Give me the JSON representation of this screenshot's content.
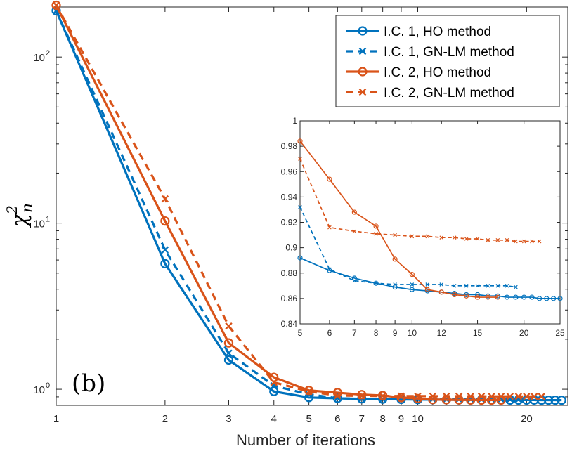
{
  "chart_data": {
    "type": "line",
    "xlabel": "Number of iterations",
    "ylabel": "χ",
    "ylabel_superscript": "2",
    "ylabel_subscript": "n",
    "panel_label": "(b)",
    "xscale": "log",
    "yscale": "log",
    "xlim": [
      1,
      26
    ],
    "ylim": [
      0.8,
      200
    ],
    "xticks": [
      1,
      2,
      3,
      4,
      5,
      6,
      7,
      8,
      9,
      10,
      20
    ],
    "xtick_labels": [
      "1",
      "2",
      "3",
      "4",
      "5",
      "6",
      "7",
      "8",
      "9",
      "10",
      "20"
    ],
    "yticks_major": [
      1,
      10,
      100
    ],
    "ytick_labels": [
      "10",
      "10",
      "10"
    ],
    "ytick_exponents": [
      "0",
      "1",
      "2"
    ],
    "legend_position": "top-right",
    "colors": {
      "blue": "#0072BD",
      "orange": "#D95319"
    },
    "series": [
      {
        "name": "I.C. 1, HO method",
        "color": "#0072BD",
        "style": "solid",
        "marker": "circle",
        "x": [
          1,
          2,
          3,
          4,
          5,
          6,
          7,
          8,
          9,
          10,
          11,
          12,
          13,
          14,
          15,
          16,
          17,
          18,
          19,
          20,
          21,
          22,
          23,
          24,
          25
        ],
        "y": [
          190,
          5.7,
          1.5,
          0.97,
          0.892,
          0.882,
          0.876,
          0.872,
          0.869,
          0.867,
          0.866,
          0.865,
          0.864,
          0.863,
          0.863,
          0.862,
          0.862,
          0.861,
          0.861,
          0.861,
          0.861,
          0.86,
          0.86,
          0.86,
          0.86
        ]
      },
      {
        "name": "I.C. 1, GN-LM method",
        "color": "#0072BD",
        "style": "dashed",
        "marker": "x",
        "x": [
          1,
          2,
          3,
          4,
          5,
          6,
          7,
          8,
          9,
          10,
          11,
          12,
          13,
          14,
          15,
          16,
          17,
          18,
          19
        ],
        "y": [
          190,
          6.9,
          1.65,
          1.05,
          0.932,
          0.883,
          0.874,
          0.872,
          0.871,
          0.871,
          0.871,
          0.871,
          0.87,
          0.87,
          0.87,
          0.87,
          0.87,
          0.87,
          0.869
        ]
      },
      {
        "name": "I.C. 2, HO method",
        "color": "#D95319",
        "style": "solid",
        "marker": "circle",
        "x": [
          1,
          2,
          3,
          4,
          5,
          6,
          7,
          8,
          9,
          10,
          11,
          12,
          13,
          14,
          15,
          16,
          17
        ],
        "y": [
          205,
          10.3,
          1.9,
          1.18,
          0.984,
          0.954,
          0.928,
          0.917,
          0.891,
          0.879,
          0.867,
          0.865,
          0.863,
          0.862,
          0.861,
          0.861,
          0.861
        ]
      },
      {
        "name": "I.C. 2, GN-LM method",
        "color": "#D95319",
        "style": "dashed",
        "marker": "x",
        "x": [
          1,
          2,
          3,
          4,
          5,
          6,
          7,
          8,
          9,
          10,
          11,
          12,
          13,
          14,
          15,
          16,
          17,
          18,
          19,
          20,
          21,
          22
        ],
        "y": [
          205,
          14,
          2.4,
          1.1,
          0.97,
          0.916,
          0.913,
          0.911,
          0.91,
          0.909,
          0.909,
          0.908,
          0.908,
          0.907,
          0.907,
          0.906,
          0.906,
          0.906,
          0.905,
          0.905,
          0.905,
          0.905
        ]
      }
    ],
    "inset": {
      "xscale": "log",
      "yscale": "linear",
      "xlim": [
        5,
        25
      ],
      "ylim": [
        0.84,
        1.0
      ],
      "xticks": [
        5,
        6,
        7,
        8,
        9,
        10,
        12,
        15,
        20,
        25
      ],
      "xtick_labels": [
        "5",
        "6",
        "7",
        "8",
        "9",
        "10",
        "12",
        "15",
        "20",
        "25"
      ],
      "yticks": [
        0.84,
        0.86,
        0.88,
        0.9,
        0.92,
        0.94,
        0.96,
        0.98,
        1.0
      ],
      "ytick_labels": [
        "0.84",
        "0.86",
        "0.88",
        "0.9",
        "0.92",
        "0.94",
        "0.96",
        "0.98",
        "1"
      ]
    }
  }
}
